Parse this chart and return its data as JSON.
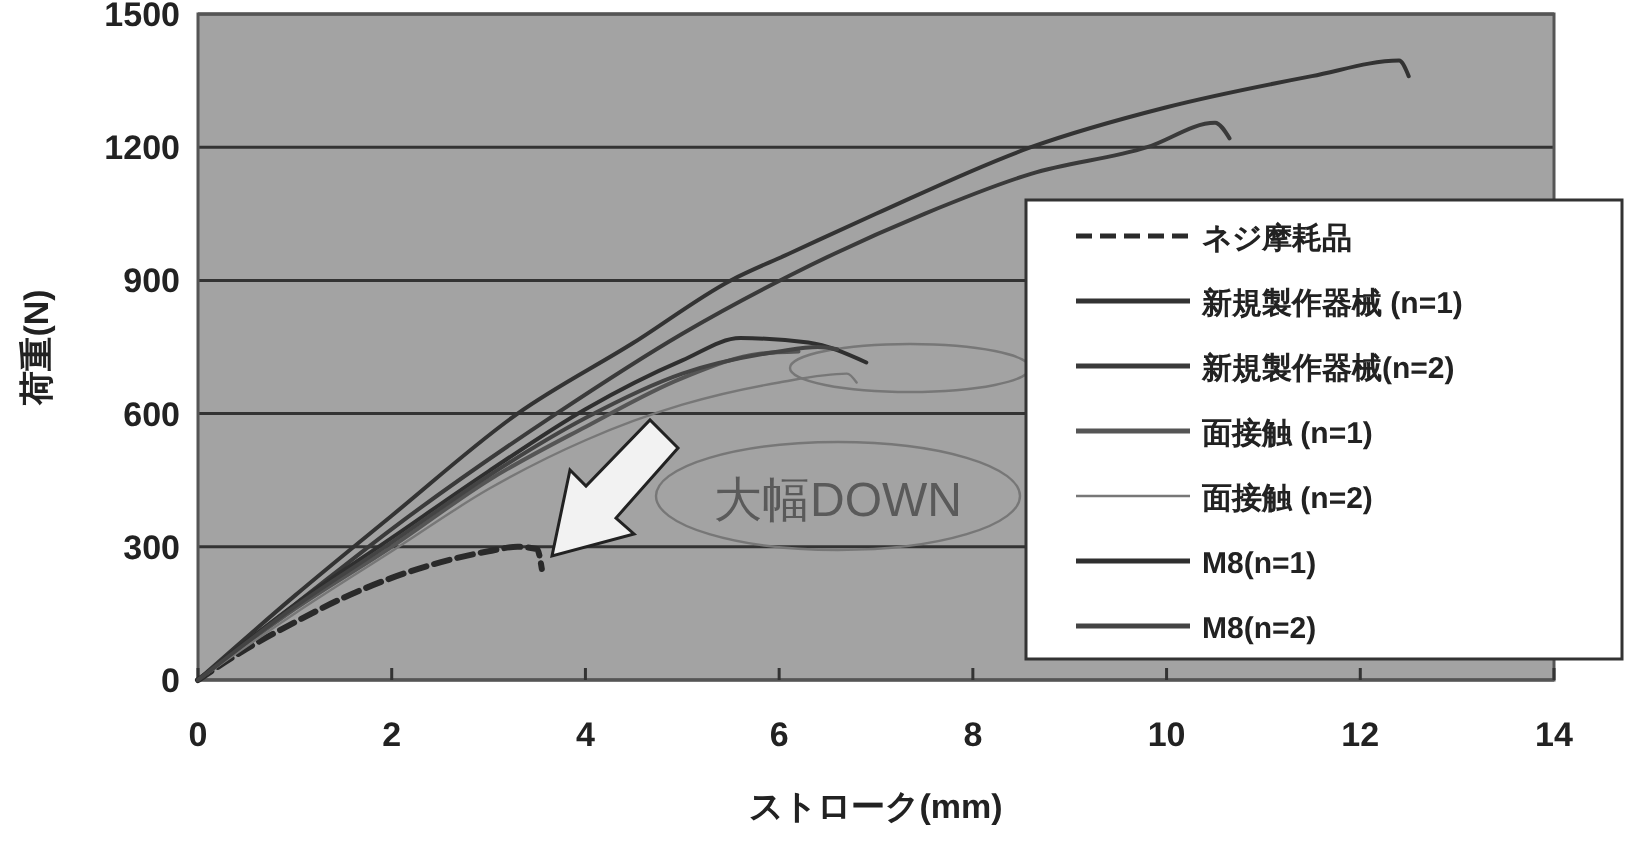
{
  "chart_data": {
    "type": "line",
    "xlabel": "ストローク(mm)",
    "ylabel": "荷重(N)",
    "xlim": [
      0,
      14
    ],
    "xticks": [
      0,
      2,
      4,
      6,
      8,
      10,
      12,
      14
    ],
    "ylim": [
      0,
      1500
    ],
    "yticks": [
      0,
      300,
      600,
      900,
      1200,
      1500
    ],
    "grid": "y",
    "legend": "right",
    "annotations": [
      "大幅DOWN"
    ],
    "series": [
      {
        "name": "ネジ摩耗品",
        "color": "#2a2a2a",
        "line_style": "dashed",
        "x": [
          0,
          0.5,
          1,
          1.5,
          2,
          2.5,
          3,
          3.3,
          3.5,
          3.55
        ],
        "values": [
          0,
          70,
          130,
          185,
          230,
          265,
          290,
          300,
          295,
          250
        ]
      },
      {
        "name": "新規製作器械 (n=1)",
        "color": "#333333",
        "x": [
          0,
          1,
          2,
          3.3,
          4.5,
          5.5,
          6.1,
          7,
          8.6,
          10,
          11.5,
          12.4,
          12.5
        ],
        "values": [
          0,
          190,
          370,
          600,
          760,
          900,
          960,
          1050,
          1200,
          1290,
          1360,
          1395,
          1360
        ]
      },
      {
        "name": "新規製作器械(n=2)",
        "color": "#3a3a3a",
        "x": [
          0,
          1,
          2,
          3.7,
          5,
          6.1,
          7.5,
          8.6,
          9.8,
          10.5,
          10.65
        ],
        "values": [
          0,
          170,
          340,
          600,
          780,
          910,
          1050,
          1140,
          1200,
          1255,
          1220
        ]
      },
      {
        "name": "面接触 (n=1)",
        "color": "#555555",
        "x": [
          0,
          1,
          2,
          3,
          4,
          5,
          5.8,
          6.2
        ],
        "values": [
          0,
          160,
          300,
          450,
          570,
          680,
          735,
          740
        ]
      },
      {
        "name": "面接触 (n=2)",
        "color": "#777777",
        "x": [
          0,
          1,
          2,
          3,
          4,
          5,
          6,
          6.7,
          6.8
        ],
        "values": [
          0,
          150,
          290,
          430,
          540,
          620,
          670,
          690,
          670
        ]
      },
      {
        "name": "M8(n=1)",
        "color": "#2f2f2f",
        "x": [
          0,
          1,
          2,
          3,
          4,
          5,
          5.6,
          6.3,
          6.9
        ],
        "values": [
          0,
          170,
          320,
          470,
          610,
          720,
          770,
          760,
          715
        ]
      },
      {
        "name": "M8(n=2)",
        "color": "#444444",
        "x": [
          0,
          1,
          2,
          3,
          4,
          5,
          6,
          6.4,
          6.6
        ],
        "values": [
          0,
          165,
          310,
          460,
          590,
          690,
          740,
          750,
          745
        ]
      }
    ]
  }
}
